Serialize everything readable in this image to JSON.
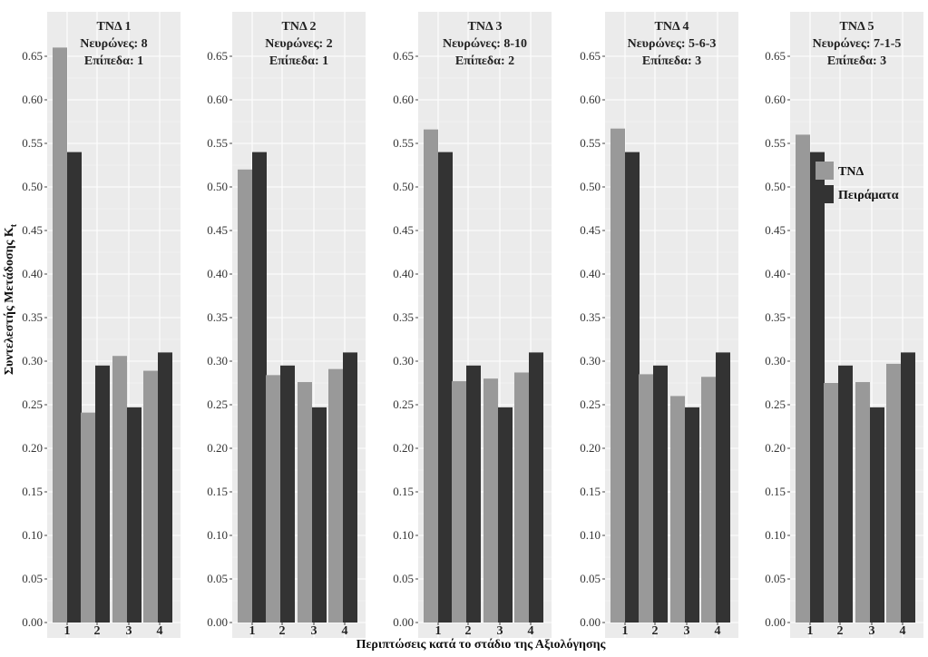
{
  "chart_data": {
    "type": "bar",
    "xlabel": "Περιπτώσεις κατά το στάδιο της Αξιολόγησης",
    "ylabel": "Συντελεστής Μετάδοσης K",
    "ylabel_sub": "t",
    "ylim": [
      0,
      0.67
    ],
    "yticks": [
      "0.00",
      "0.05",
      "0.10",
      "0.15",
      "0.20",
      "0.25",
      "0.30",
      "0.35",
      "0.40",
      "0.45",
      "0.50",
      "0.55",
      "0.60",
      "0.65"
    ],
    "categories": [
      "1",
      "2",
      "3",
      "4"
    ],
    "grid": true,
    "legend": {
      "position": "right",
      "entries": [
        {
          "name": "ΤΝΔ",
          "color": "#999999"
        },
        {
          "name": "Πειράματα",
          "color": "#333333"
        }
      ]
    },
    "panels": [
      {
        "title_lines": [
          "ΤΝΔ 1",
          "Νευρώνες: 8",
          "Επίπεδα: 1"
        ],
        "series": [
          {
            "name": "ΤΝΔ",
            "values": [
              0.66,
              0.241,
              0.306,
              0.289
            ]
          },
          {
            "name": "Πειράματα",
            "values": [
              0.54,
              0.295,
              0.247,
              0.31
            ]
          }
        ]
      },
      {
        "title_lines": [
          "ΤΝΔ 2",
          "Νευρώνες: 2",
          "Επίπεδα: 1"
        ],
        "series": [
          {
            "name": "ΤΝΔ",
            "values": [
              0.52,
              0.284,
              0.276,
              0.291
            ]
          },
          {
            "name": "Πειράματα",
            "values": [
              0.54,
              0.295,
              0.247,
              0.31
            ]
          }
        ]
      },
      {
        "title_lines": [
          "ΤΝΔ 3",
          "Νευρώνες: 8-10",
          "Επίπεδα: 2"
        ],
        "series": [
          {
            "name": "ΤΝΔ",
            "values": [
              0.566,
              0.277,
              0.28,
              0.287
            ]
          },
          {
            "name": "Πειράματα",
            "values": [
              0.54,
              0.295,
              0.247,
              0.31
            ]
          }
        ]
      },
      {
        "title_lines": [
          "ΤΝΔ 4",
          "Νευρώνες: 5-6-3",
          "Επίπεδα: 3"
        ],
        "series": [
          {
            "name": "ΤΝΔ",
            "values": [
              0.567,
              0.285,
              0.26,
              0.282
            ]
          },
          {
            "name": "Πειράματα",
            "values": [
              0.54,
              0.295,
              0.247,
              0.31
            ]
          }
        ]
      },
      {
        "title_lines": [
          "ΤΝΔ 5",
          "Νευρώνες: 7-1-5",
          "Επίπεδα: 3"
        ],
        "series": [
          {
            "name": "ΤΝΔ",
            "values": [
              0.56,
              0.275,
              0.276,
              0.297
            ]
          },
          {
            "name": "Πειράματα",
            "values": [
              0.54,
              0.295,
              0.247,
              0.31
            ]
          }
        ]
      }
    ]
  }
}
